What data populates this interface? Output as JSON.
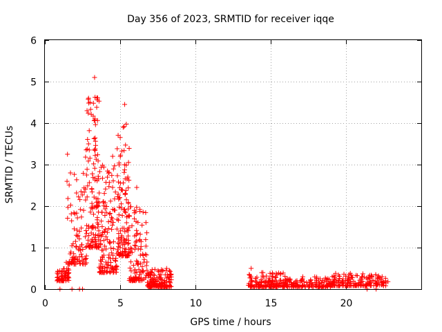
{
  "chart_data": {
    "type": "scatter",
    "title": "Day 356 of 2023, SRMTID for receiver iqqe",
    "xlabel": "GPS time / hours",
    "ylabel": "SRMTID / TECUs",
    "xlim": [
      0,
      25
    ],
    "ylim": [
      0,
      6
    ],
    "xticks": [
      0,
      5,
      10,
      15,
      20
    ],
    "yticks": [
      0,
      1,
      2,
      3,
      4,
      5,
      6
    ],
    "grid": true,
    "marker": "plus",
    "color": "#ff0000",
    "series": [
      {
        "name": "SRMTID",
        "clusters": [
          {
            "x_start": 0.8,
            "x_end": 1.6,
            "y_base": 0.2,
            "y_spread": 0.3,
            "points": 60
          },
          {
            "x_start": 1.4,
            "x_end": 2.8,
            "y_base": 0.6,
            "y_spread": 2.2,
            "points": 90
          },
          {
            "x_start": 2.7,
            "x_end": 3.6,
            "y_base": 1.0,
            "y_spread": 3.7,
            "points": 130
          },
          {
            "x_start": 3.6,
            "x_end": 4.8,
            "y_base": 0.4,
            "y_spread": 2.6,
            "points": 140
          },
          {
            "x_start": 4.8,
            "x_end": 5.6,
            "y_base": 0.8,
            "y_spread": 3.2,
            "points": 120
          },
          {
            "x_start": 5.6,
            "x_end": 6.8,
            "y_base": 0.2,
            "y_spread": 1.8,
            "points": 110
          },
          {
            "x_start": 6.8,
            "x_end": 8.4,
            "y_base": 0.05,
            "y_spread": 0.45,
            "points": 150
          },
          {
            "x_start": 13.5,
            "x_end": 16.0,
            "y_base": 0.05,
            "y_spread": 0.35,
            "points": 140
          },
          {
            "x_start": 16.0,
            "x_end": 19.0,
            "y_base": 0.05,
            "y_spread": 0.25,
            "points": 130
          },
          {
            "x_start": 19.0,
            "x_end": 22.8,
            "y_base": 0.08,
            "y_spread": 0.3,
            "points": 170
          }
        ],
        "highlight_points": [
          {
            "x": 3.3,
            "y": 5.1
          },
          {
            "x": 2.9,
            "y": 4.6
          },
          {
            "x": 3.0,
            "y": 4.5
          },
          {
            "x": 5.3,
            "y": 4.45
          },
          {
            "x": 2.8,
            "y": 4.3
          },
          {
            "x": 5.2,
            "y": 3.9
          },
          {
            "x": 1.5,
            "y": 3.25
          },
          {
            "x": 4.5,
            "y": 3.2
          },
          {
            "x": 2.9,
            "y": 3.5
          },
          {
            "x": 1.7,
            "y": 2.8
          },
          {
            "x": 2.4,
            "y": 2.35
          },
          {
            "x": 6.1,
            "y": 2.45
          },
          {
            "x": 13.7,
            "y": 0.5
          },
          {
            "x": 20.2,
            "y": 0.35
          },
          {
            "x": 22.4,
            "y": 0.3
          },
          {
            "x": 1.8,
            "y": 0.0
          },
          {
            "x": 2.3,
            "y": 0.0
          },
          {
            "x": 2.5,
            "y": 0.0
          },
          {
            "x": 1.0,
            "y": 0.0
          },
          {
            "x": 21.4,
            "y": 0.0
          },
          {
            "x": 22.0,
            "y": 0.0
          }
        ]
      }
    ]
  }
}
